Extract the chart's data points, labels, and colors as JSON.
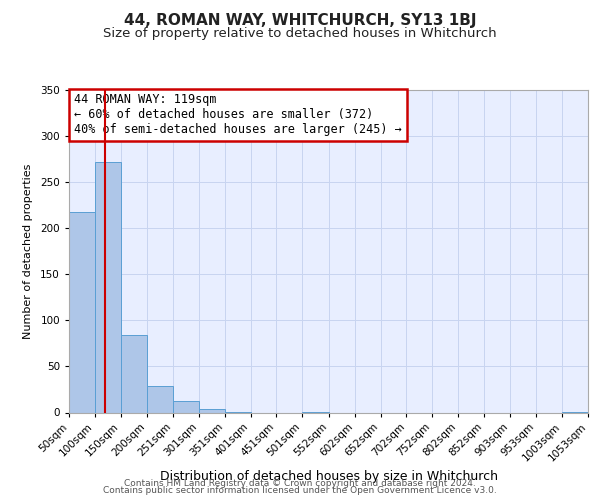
{
  "title": "44, ROMAN WAY, WHITCHURCH, SY13 1BJ",
  "subtitle": "Size of property relative to detached houses in Whitchurch",
  "xlabel": "Distribution of detached houses by size in Whitchurch",
  "ylabel": "Number of detached properties",
  "bar_edges": [
    50,
    100,
    150,
    200,
    251,
    301,
    351,
    401,
    451,
    501,
    552,
    602,
    652,
    702,
    752,
    802,
    852,
    903,
    953,
    1003,
    1053
  ],
  "bar_heights": [
    218,
    272,
    84,
    29,
    13,
    4,
    1,
    0,
    0,
    1,
    0,
    0,
    0,
    0,
    0,
    0,
    0,
    0,
    0,
    1
  ],
  "bar_color": "#aec6e8",
  "bar_edge_color": "#5a9fd4",
  "vline_x": 119,
  "vline_color": "#cc0000",
  "ylim": [
    0,
    350
  ],
  "yticks": [
    0,
    50,
    100,
    150,
    200,
    250,
    300,
    350
  ],
  "annotation_title": "44 ROMAN WAY: 119sqm",
  "annotation_line1": "← 60% of detached houses are smaller (372)",
  "annotation_line2": "40% of semi-detached houses are larger (245) →",
  "annotation_box_color": "#cc0000",
  "footer1": "Contains HM Land Registry data © Crown copyright and database right 2024.",
  "footer2": "Contains public sector information licensed under the Open Government Licence v3.0.",
  "bg_color": "#ffffff",
  "plot_bg_color": "#e8eeff",
  "grid_color": "#c8d4f0",
  "title_fontsize": 11,
  "subtitle_fontsize": 9.5,
  "xlabel_fontsize": 9,
  "ylabel_fontsize": 8,
  "tick_fontsize": 7.5,
  "annotation_fontsize": 8.5,
  "footer_fontsize": 6.5
}
